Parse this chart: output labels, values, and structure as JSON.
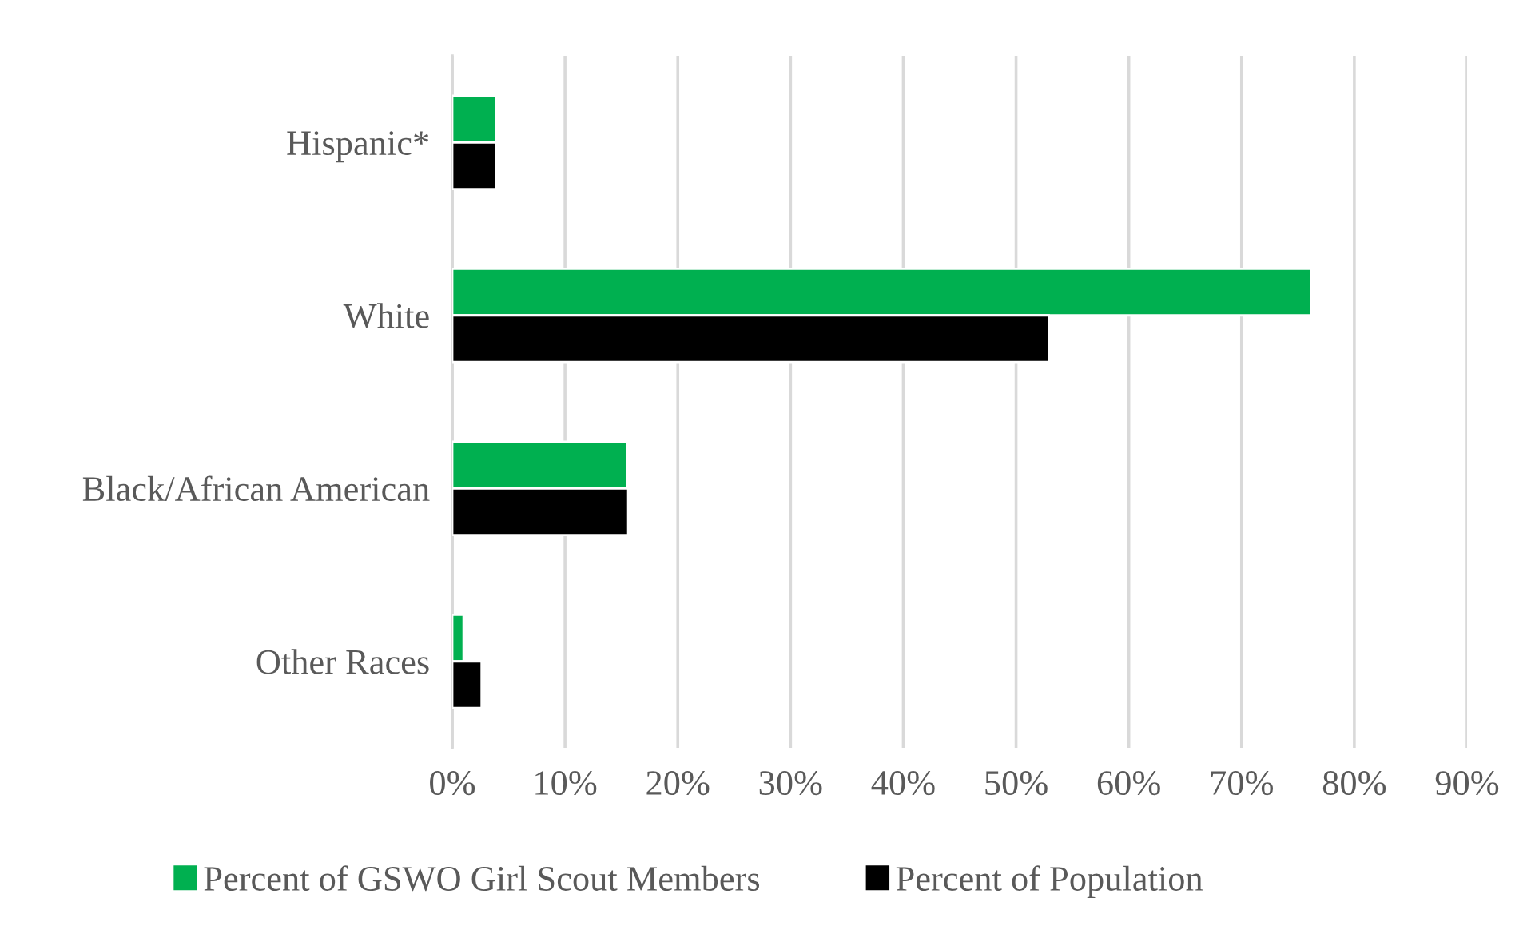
{
  "chart_data": {
    "type": "bar",
    "orientation": "horizontal",
    "categories": [
      "Hispanic*",
      "White",
      "Black/African American",
      "Other Races"
    ],
    "series": [
      {
        "name": "Percent of GSWO Girl Scout Members",
        "color": "#00b050",
        "values": [
          3.9,
          76.2,
          15.5,
          1.0
        ]
      },
      {
        "name": "Percent of Population",
        "color": "#000000",
        "values": [
          3.9,
          52.9,
          15.6,
          2.6
        ]
      }
    ],
    "xlim": [
      0,
      90
    ],
    "xticks": [
      {
        "value": 0,
        "label": "0%"
      },
      {
        "value": 10,
        "label": "10%"
      },
      {
        "value": 20,
        "label": "20%"
      },
      {
        "value": 30,
        "label": "30%"
      },
      {
        "value": 40,
        "label": "40%"
      },
      {
        "value": 50,
        "label": "50%"
      },
      {
        "value": 60,
        "label": "60%"
      },
      {
        "value": 70,
        "label": "70%"
      },
      {
        "value": 80,
        "label": "80%"
      },
      {
        "value": 90,
        "label": "90%"
      }
    ],
    "grid": "x",
    "legend": "bottom"
  }
}
